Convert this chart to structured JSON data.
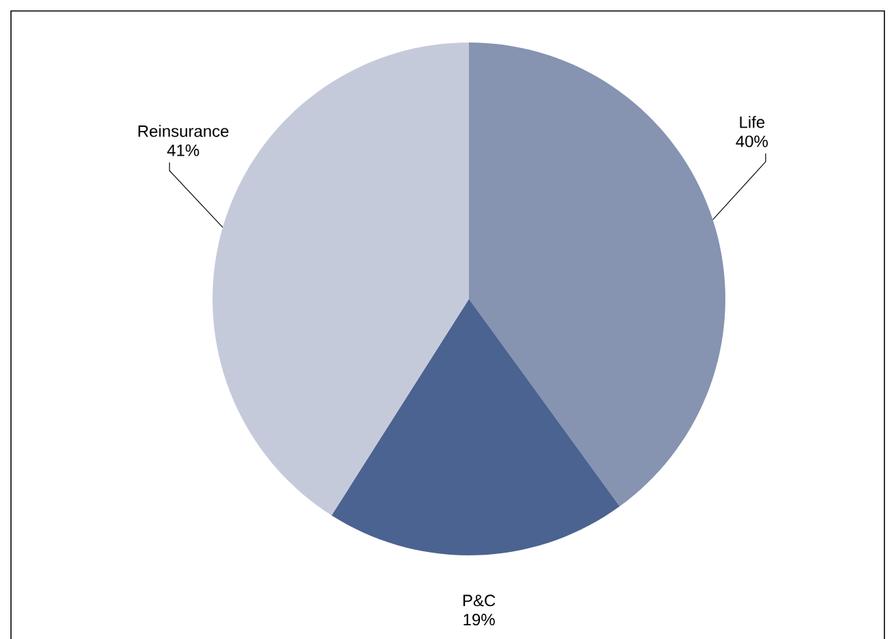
{
  "chart_data": {
    "type": "pie",
    "categories": [
      "Life",
      "P&C",
      "Reinsurance"
    ],
    "values": [
      40,
      19,
      41
    ],
    "value_labels": [
      "40%",
      "19%",
      "41%"
    ],
    "colors": [
      "#8693b1",
      "#4b6390",
      "#c5cadb"
    ]
  }
}
